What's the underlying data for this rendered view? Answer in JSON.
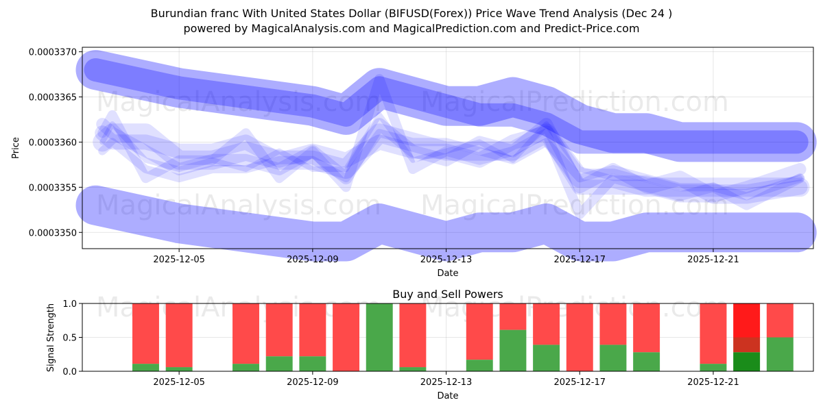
{
  "title_line1": "Burundian franc With United States Dollar (BIFUSD(Forex)) Price Wave Trend Analysis (Dec 24 )",
  "title_line2": "powered by MagicalAnalysis.com and MagicalPrediction.com and Predict-Price.com",
  "watermarks": [
    "MagicalAnalysis.com",
    "MagicalPrediction.com"
  ],
  "chart_data": [
    {
      "type": "line",
      "title": "",
      "xlabel": "Date",
      "ylabel": "Price",
      "x_ticks": [
        "2025-12-05",
        "2025-12-09",
        "2025-12-13",
        "2025-12-17",
        "2025-12-21"
      ],
      "x_tick_days": [
        5,
        9,
        13,
        17,
        21
      ],
      "x_range_days": [
        2.1,
        24.0
      ],
      "y_ticks": [
        "0.0003350",
        "0.0003355",
        "0.0003360",
        "0.0003365",
        "0.0003370"
      ],
      "y_tick_values": [
        0.000335,
        0.0003355,
        0.000336,
        0.0003365,
        0.000337
      ],
      "ylim": [
        0.00033482,
        0.00033705
      ],
      "band_color": "#0000ff",
      "bands": [
        {
          "name": "upper-channel",
          "x": [
            2.5,
            5,
            7,
            9,
            10,
            11,
            12,
            13,
            14,
            15,
            16,
            17,
            18,
            19,
            20,
            21,
            22,
            23.5
          ],
          "values": [
            0.0003368,
            0.0003366,
            0.0003365,
            0.0003364,
            0.0003363,
            0.0003366,
            0.0003365,
            0.0003364,
            0.0003364,
            0.0003365,
            0.0003364,
            0.0003362,
            0.0003361,
            0.0003361,
            0.000336,
            0.000336,
            0.000336,
            0.000336
          ]
        },
        {
          "name": "lower-channel",
          "x": [
            2.5,
            5,
            7,
            9,
            10,
            11,
            12,
            13,
            14,
            15,
            16,
            17,
            18,
            19,
            20,
            21,
            22,
            23.5
          ],
          "values": [
            0.0003353,
            0.0003351,
            0.000335,
            0.0003349,
            0.0003349,
            0.0003351,
            0.000335,
            0.0003349,
            0.000335,
            0.000335,
            0.0003351,
            0.0003349,
            0.0003349,
            0.000335,
            0.000335,
            0.000335,
            0.000335,
            0.000335
          ]
        },
        {
          "name": "center-channel",
          "x": [
            2.5,
            5,
            7,
            9,
            10,
            11,
            12,
            13,
            14,
            15,
            16,
            17,
            18,
            19,
            20,
            21,
            22,
            23.5
          ],
          "values": [
            0.0003368,
            0.0003366,
            0.0003365,
            0.0003364,
            0.0003363,
            0.0003366,
            0.0003365,
            0.0003364,
            0.0003363,
            0.0003363,
            0.0003362,
            0.000336,
            0.000336,
            0.000336,
            0.000336,
            0.000336,
            0.000336,
            0.000336
          ]
        }
      ],
      "waves": [
        {
          "name": "wave-1",
          "x": [
            2.7,
            3,
            4,
            5,
            6,
            7,
            8,
            9,
            10,
            11,
            12,
            13,
            14,
            15,
            16,
            17,
            18,
            19,
            20,
            21,
            22,
            23.6
          ],
          "values": [
            0.000336,
            0.0003361,
            0.0003361,
            0.0003358,
            0.0003358,
            0.0003359,
            0.0003358,
            0.0003358,
            0.0003357,
            0.0003361,
            0.000336,
            0.0003359,
            0.0003359,
            0.0003359,
            0.0003361,
            0.0003356,
            0.0003356,
            0.0003355,
            0.0003355,
            0.0003355,
            0.0003355,
            0.0003355
          ]
        },
        {
          "name": "wave-2",
          "x": [
            2.7,
            3,
            4,
            5,
            6,
            7,
            8,
            9,
            10,
            11,
            12,
            13,
            14,
            15,
            16,
            17,
            18,
            19,
            20,
            21,
            22,
            23.6
          ],
          "values": [
            0.0003362,
            0.0003361,
            0.0003359,
            0.0003357,
            0.0003358,
            0.0003358,
            0.0003357,
            0.0003359,
            0.0003356,
            0.0003362,
            0.0003359,
            0.0003358,
            0.000336,
            0.0003359,
            0.0003362,
            0.0003355,
            0.0003357,
            0.0003355,
            0.0003354,
            0.0003354,
            0.0003355,
            0.0003357
          ]
        },
        {
          "name": "wave-3",
          "x": [
            2.7,
            3,
            4,
            5,
            6,
            7,
            8,
            9,
            10,
            11,
            12,
            13,
            14,
            15,
            16,
            17,
            18,
            19,
            20,
            21,
            22,
            23.6
          ],
          "values": [
            0.0003359,
            0.000336,
            0.0003357,
            0.0003356,
            0.0003357,
            0.0003357,
            0.0003358,
            0.0003358,
            0.0003356,
            0.0003361,
            0.000336,
            0.000336,
            0.0003359,
            0.0003358,
            0.000336,
            0.0003356,
            0.0003357,
            0.0003356,
            0.0003355,
            0.0003355,
            0.0003354,
            0.0003356
          ]
        },
        {
          "name": "wave-4",
          "x": [
            2.7,
            3,
            4,
            5,
            6,
            7,
            8,
            9,
            10,
            11,
            12,
            13,
            14,
            15,
            16,
            17,
            18,
            19,
            20,
            21,
            22,
            23.6
          ],
          "values": [
            0.0003361,
            0.000336,
            0.000336,
            0.0003359,
            0.0003359,
            0.000336,
            0.0003358,
            0.0003359,
            0.0003358,
            0.000336,
            0.0003359,
            0.0003359,
            0.0003358,
            0.000336,
            0.0003361,
            0.0003355,
            0.0003355,
            0.0003355,
            0.0003356,
            0.0003354,
            0.0003354,
            0.0003355
          ]
        },
        {
          "name": "wave-5",
          "x": [
            2.7,
            3,
            4,
            5,
            6,
            7,
            8,
            9,
            10,
            11,
            12,
            13,
            14,
            15,
            16,
            17,
            18,
            19,
            20,
            21,
            22,
            23.6
          ],
          "values": [
            0.000336,
            0.0003362,
            0.0003358,
            0.0003357,
            0.0003358,
            0.0003357,
            0.0003359,
            0.0003357,
            0.0003357,
            0.0003363,
            0.0003358,
            0.0003359,
            0.000336,
            0.0003358,
            0.0003362,
            0.0003357,
            0.0003356,
            0.0003356,
            0.0003355,
            0.0003355,
            0.0003355,
            0.0003356
          ]
        },
        {
          "name": "wave-6",
          "x": [
            2.7,
            3,
            4,
            5,
            6,
            7,
            8,
            9,
            10,
            11,
            12,
            13,
            14,
            15,
            16,
            17,
            18,
            19,
            20,
            21,
            22,
            23.6
          ],
          "values": [
            0.0003361,
            0.0003363,
            0.0003356,
            0.0003358,
            0.0003358,
            0.0003361,
            0.0003356,
            0.0003359,
            0.0003355,
            0.0003367,
            0.0003357,
            0.0003359,
            0.0003358,
            0.0003359,
            0.0003361,
            0.0003352,
            0.0003356,
            0.0003355,
            0.0003354,
            0.0003355,
            0.0003353,
            0.0003356
          ]
        }
      ]
    },
    {
      "type": "bar",
      "title": "Buy and Sell Powers",
      "xlabel": "Date",
      "ylabel": "Signal Strength",
      "x_ticks": [
        "2025-12-05",
        "2025-12-09",
        "2025-12-13",
        "2025-12-17",
        "2025-12-21"
      ],
      "x_tick_days": [
        5,
        9,
        13,
        17,
        21
      ],
      "x_range_days": [
        2.1,
        24.0
      ],
      "y_ticks": [
        "0.0",
        "0.5",
        "1.0"
      ],
      "y_tick_values": [
        0,
        0.5,
        1.0
      ],
      "ylim": [
        0,
        1.0
      ],
      "buy_color": "#4aa84a",
      "sell_color": "#ff4a4a",
      "latest_buy_color": "#1a8c1a",
      "latest_mid_color": "#cc3320",
      "latest_sell_color": "#ff1a1a",
      "days": [
        4,
        5,
        7,
        8,
        9,
        10,
        11,
        12,
        14,
        15,
        16,
        17,
        18,
        19,
        21,
        22,
        23
      ],
      "buy": [
        0.11,
        0.06,
        0.11,
        0.22,
        0.22,
        0.0,
        1.0,
        0.06,
        0.17,
        0.61,
        0.39,
        0.0,
        0.39,
        0.28,
        0.11,
        0.28,
        0.5
      ],
      "latest": {
        "day": 22,
        "buy": 0.28,
        "mid_top": 0.5
      }
    }
  ]
}
